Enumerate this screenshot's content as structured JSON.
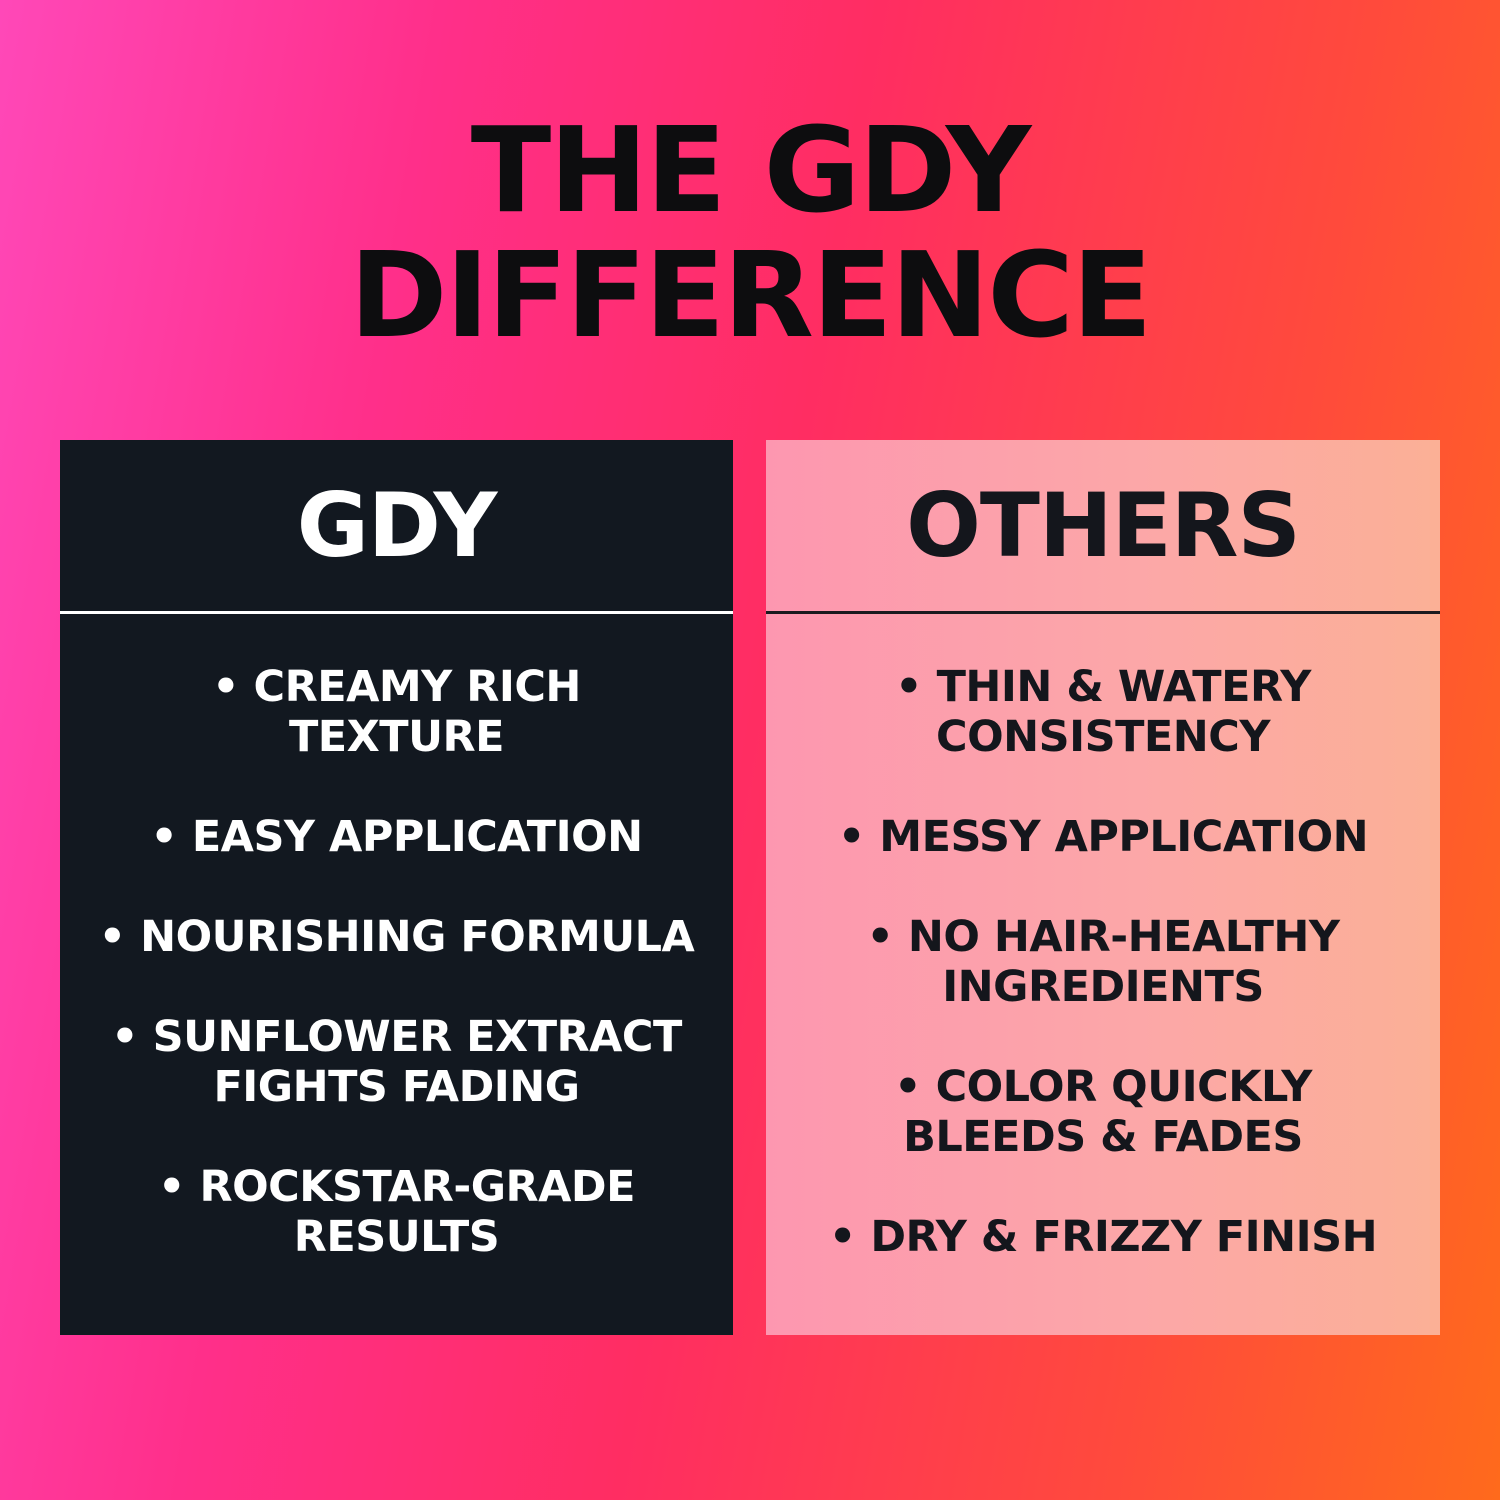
{
  "title": {
    "line1": "THE GDY",
    "line2": "DIFFERENCE"
  },
  "gdy": {
    "header": "GDY",
    "items": [
      "• CREAMY RICH\nTEXTURE",
      "• EASY APPLICATION",
      "• NOURISHING FORMULA",
      "• SUNFLOWER EXTRACT\nFIGHTS FADING",
      "• ROCKSTAR-GRADE\nRESULTS"
    ]
  },
  "others": {
    "header": "OTHERS",
    "items": [
      "• THIN & WATERY\nCONSISTENCY",
      "• MESSY APPLICATION",
      "• NO HAIR-HEALTHY\nINGREDIENTS",
      "• COLOR QUICKLY\nBLEEDS & FADES",
      "• DRY & FRIZZY FINISH"
    ]
  },
  "colors": {
    "gdy_panel": "#121820",
    "others_panel": "#fca7a8",
    "background_left": "#ff48b8",
    "background_right": "#ff6a1c"
  }
}
